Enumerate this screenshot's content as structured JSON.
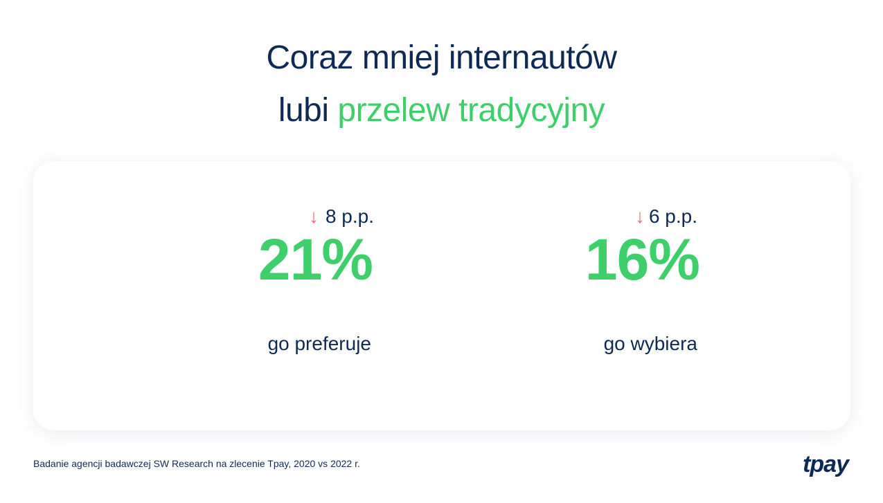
{
  "title": {
    "line1": "Coraz mniej internautów",
    "line2_prefix": "lubi",
    "line2_accent": "przelew tradycyjny"
  },
  "stats": [
    {
      "change_arrow": "↓",
      "change": "8 p.p.",
      "value": "21%",
      "caption": "go preferuje"
    },
    {
      "change_arrow": "↓",
      "change": "6 p.p.",
      "value": "16%",
      "caption": "go wybiera"
    }
  ],
  "source": "Badanie agencji badawczej SW Research na zlecenie Tpay, 2020 vs 2022 r.",
  "logo": "tpay",
  "colors": {
    "navy": "#0e2a54",
    "green": "#3ecf6a",
    "arrow_red": "#f06a6a"
  }
}
